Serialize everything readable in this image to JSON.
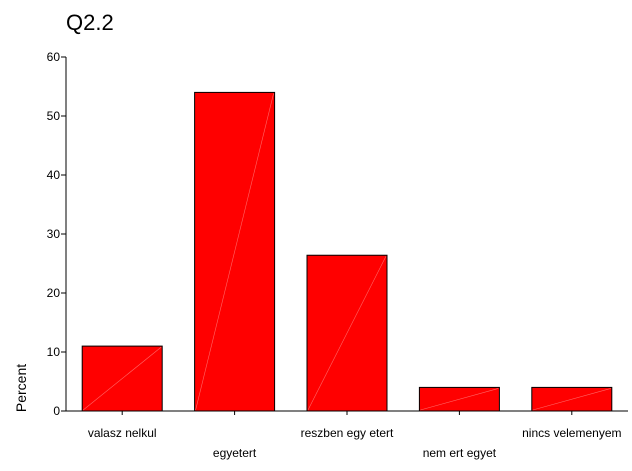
{
  "chart_data": {
    "type": "bar",
    "title": "Q2.2",
    "xlabel": "",
    "ylabel": "Percent",
    "ylim": [
      0,
      60
    ],
    "yticks": [
      0,
      10,
      20,
      30,
      40,
      50,
      60
    ],
    "categories": [
      "valasz nelkul",
      "egyetert",
      "reszben egy etert",
      "nem ert egyet",
      "nincs velemenyem"
    ],
    "values": [
      11.0,
      54.0,
      26.4,
      4.0,
      4.0
    ],
    "grid": false,
    "legend": "none",
    "colors": {
      "bar_fill": "#ff0000",
      "bar_stroke": "#000000",
      "bar_diagonal": "#ff6666",
      "axis": "#000000"
    }
  }
}
